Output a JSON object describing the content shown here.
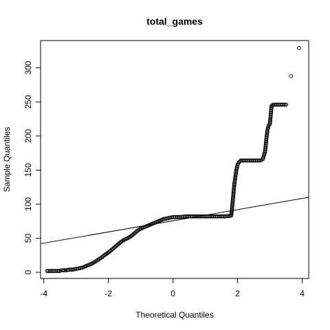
{
  "chart_data": {
    "type": "scatter",
    "subtype": "qq-plot",
    "title": "total_games",
    "xlabel": "Theoretical Quantiles",
    "ylabel": "Sample Quantiles",
    "xlim": [
      -4.1,
      4.2
    ],
    "ylim": [
      -9,
      340
    ],
    "x_ticks": [
      -4,
      -2,
      0,
      2,
      4
    ],
    "y_ticks": [
      0,
      50,
      100,
      150,
      200,
      250,
      300
    ],
    "grid": false,
    "legend": "none",
    "reference_line": {
      "x": [
        -4.1,
        4.2
      ],
      "y": [
        42,
        110
      ]
    },
    "points": [
      [
        -3.9,
        2
      ],
      [
        -3.7,
        2
      ],
      [
        -3.6,
        2
      ],
      [
        -3.5,
        2
      ],
      [
        -3.45,
        3
      ],
      [
        -3.35,
        3
      ],
      [
        -3.3,
        3
      ],
      [
        -3.2,
        4
      ],
      [
        -3.1,
        4
      ],
      [
        -3.0,
        5
      ],
      [
        -2.9,
        6
      ],
      [
        -2.8,
        7
      ],
      [
        -2.7,
        9
      ],
      [
        -2.6,
        11
      ],
      [
        -2.5,
        13
      ],
      [
        -2.4,
        16
      ],
      [
        -2.3,
        19
      ],
      [
        -2.2,
        22
      ],
      [
        -2.1,
        26
      ],
      [
        -2.0,
        29
      ],
      [
        -1.9,
        33
      ],
      [
        -1.8,
        37
      ],
      [
        -1.7,
        41
      ],
      [
        -1.6,
        45
      ],
      [
        -1.5,
        48
      ],
      [
        -1.4,
        50
      ],
      [
        -1.3,
        53
      ],
      [
        -1.2,
        57
      ],
      [
        -1.1,
        61
      ],
      [
        -1.0,
        64
      ],
      [
        -0.9,
        66
      ],
      [
        -0.8,
        68
      ],
      [
        -0.7,
        70
      ],
      [
        -0.6,
        72
      ],
      [
        -0.5,
        74
      ],
      [
        -0.4,
        76
      ],
      [
        -0.3,
        78
      ],
      [
        -0.2,
        79
      ],
      [
        -0.1,
        80
      ],
      [
        0.0,
        81
      ],
      [
        0.2,
        81
      ],
      [
        0.4,
        82
      ],
      [
        0.6,
        82
      ],
      [
        0.8,
        82
      ],
      [
        1.0,
        82
      ],
      [
        1.2,
        82
      ],
      [
        1.4,
        82
      ],
      [
        1.6,
        82
      ],
      [
        1.8,
        83
      ],
      [
        1.82,
        90
      ],
      [
        1.84,
        100
      ],
      [
        1.86,
        110
      ],
      [
        1.88,
        120
      ],
      [
        1.9,
        130
      ],
      [
        1.93,
        140
      ],
      [
        1.96,
        150
      ],
      [
        2.0,
        158
      ],
      [
        2.05,
        162
      ],
      [
        2.1,
        164
      ],
      [
        2.2,
        164
      ],
      [
        2.3,
        164
      ],
      [
        2.4,
        164
      ],
      [
        2.5,
        164
      ],
      [
        2.6,
        164
      ],
      [
        2.7,
        164
      ],
      [
        2.78,
        166
      ],
      [
        2.82,
        172
      ],
      [
        2.85,
        177
      ],
      [
        2.9,
        200
      ],
      [
        2.93,
        210
      ],
      [
        2.96,
        215
      ],
      [
        3.0,
        218
      ],
      [
        3.05,
        244
      ],
      [
        3.1,
        246
      ],
      [
        3.2,
        246
      ],
      [
        3.3,
        246
      ],
      [
        3.4,
        246
      ],
      [
        3.5,
        246
      ],
      [
        3.65,
        288
      ],
      [
        3.9,
        329
      ]
    ]
  }
}
